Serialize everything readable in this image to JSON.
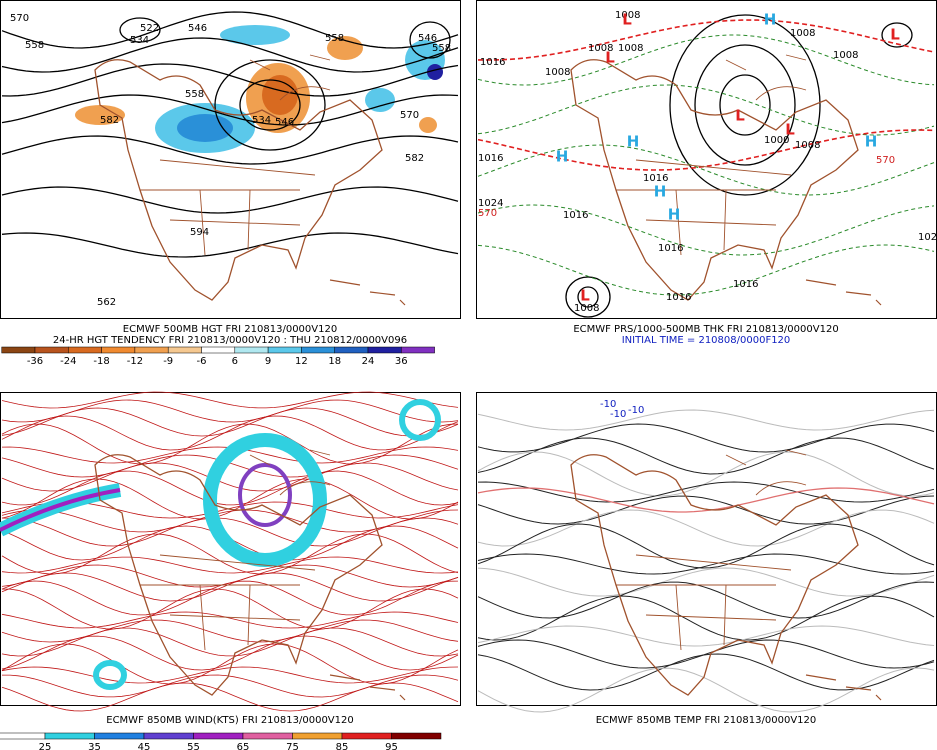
{
  "panels": [
    {
      "captions": [
        "ECMWF 500MB HGT FRI 210813/0000V120",
        "24-HR HGT TENDENCY FRI 210813/0000V120 : THU 210812/0000V096"
      ],
      "colorbar": [
        -36,
        -24,
        -18,
        -12,
        -9,
        -6,
        6,
        9,
        12,
        18,
        24,
        36
      ],
      "labels": [
        "570",
        "522",
        "546",
        "558",
        "534",
        "558",
        "546",
        "558",
        "558",
        "582",
        "534",
        "546",
        "570",
        "582",
        "594",
        "562"
      ]
    },
    {
      "captions": [
        "ECMWF PRS/1000-500MB THK FRI 210813/0000V120",
        "INITIAL TIME = 210808/0000F120"
      ],
      "labels": [
        "1008",
        "1008",
        "1008",
        "1016",
        "1008",
        "1016",
        "1024",
        "1016",
        "1016",
        "1016",
        "1016",
        "1016",
        "1008",
        "1008",
        "1000",
        "1008",
        "1008",
        "570",
        "570",
        "102"
      ],
      "highs": [
        "H",
        "H",
        "H",
        "H",
        "H",
        "H"
      ],
      "lows": [
        "L",
        "L",
        "L",
        "L",
        "L",
        "L"
      ]
    },
    {
      "captions": [
        "ECMWF 850MB WIND(KTS) FRI 210813/0000V120"
      ],
      "colorbar": [
        25,
        35,
        45,
        55,
        65,
        75,
        85,
        95
      ]
    },
    {
      "captions": [
        "ECMWF 850MB TEMP FRI 210813/0000V120"
      ],
      "labels": [
        "-10",
        "-10",
        "-10"
      ]
    }
  ]
}
